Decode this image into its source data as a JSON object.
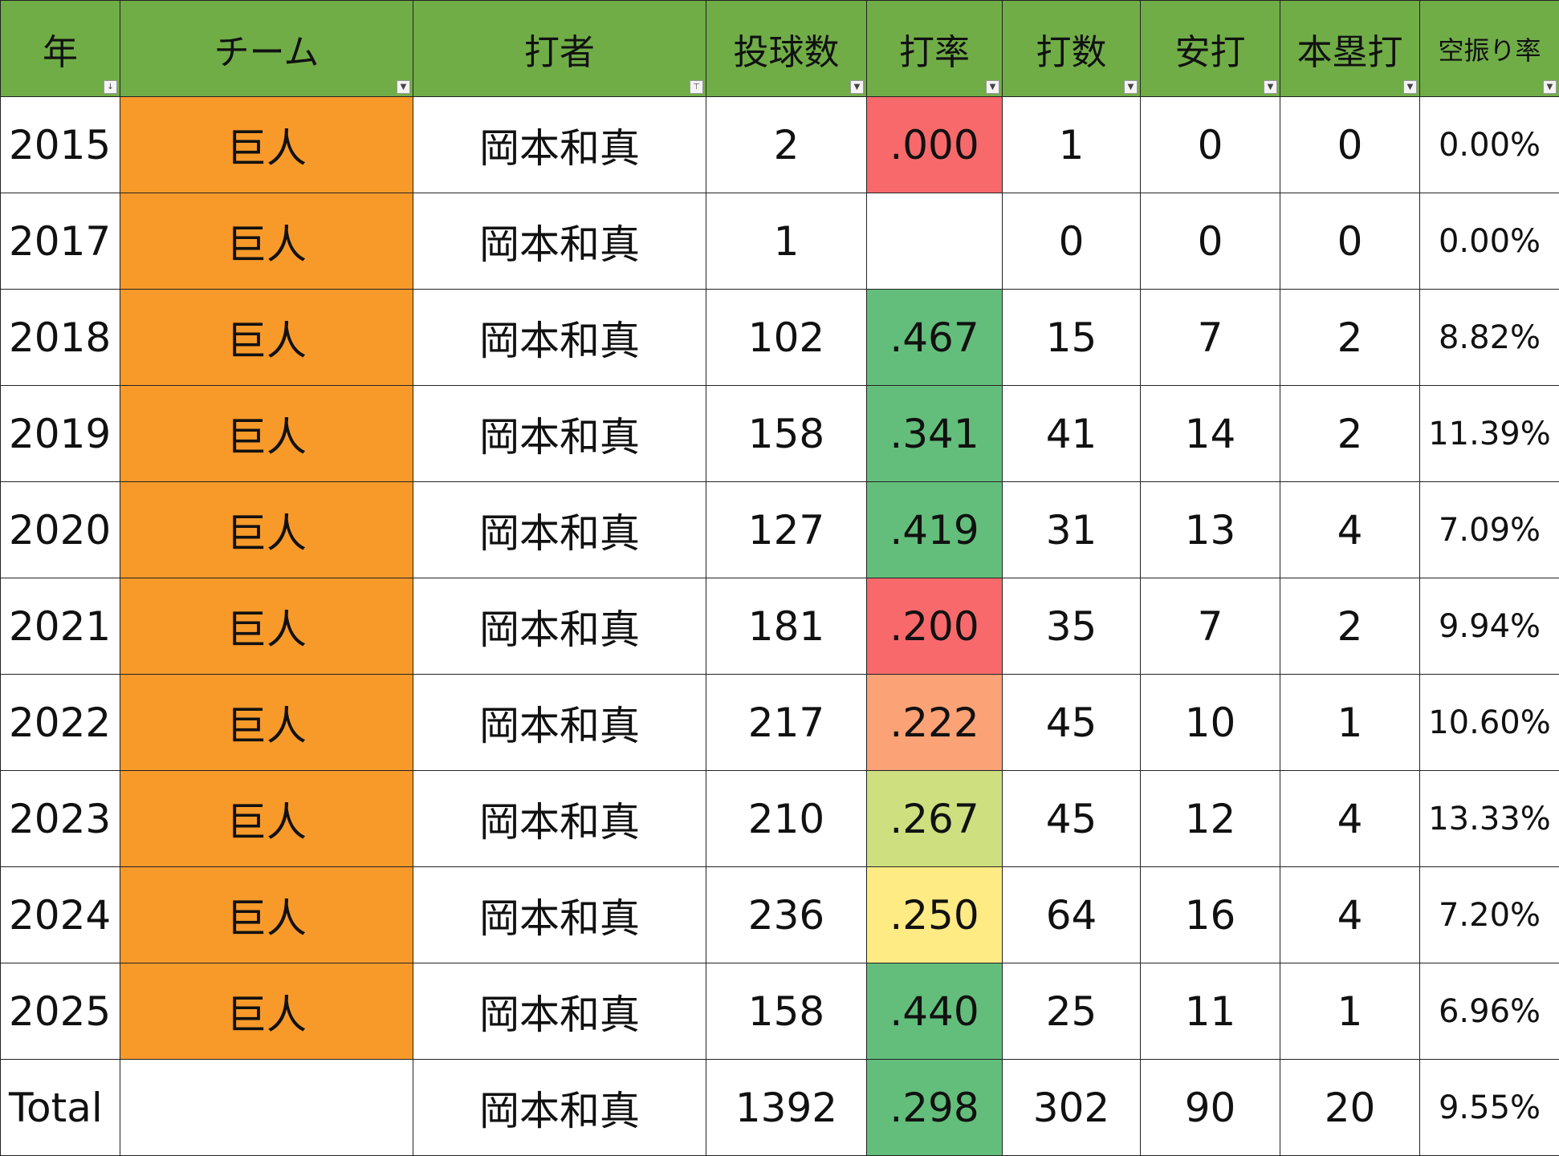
{
  "headers": [
    "年",
    "チーム",
    "打者",
    "投球数",
    "打率",
    "打数",
    "安打",
    "本塁打",
    "空振り率"
  ],
  "header_filter_icons": [
    "sort-filter-icon",
    "dropdown-icon",
    "filter-active-icon",
    "dropdown-icon",
    "dropdown-icon",
    "dropdown-icon",
    "dropdown-icon",
    "dropdown-icon",
    "dropdown-icon"
  ],
  "colors": {
    "header": "#70AD47",
    "team": "#F79A2A",
    "red": "#F8696B",
    "salmon": "#FBA276",
    "lightgreen": "#CDDF7F",
    "yellow": "#FFEB84",
    "green": "#63BE7B"
  },
  "rows": [
    {
      "year": "2015",
      "team": "巨人",
      "batter": "岡本和真",
      "pitches": "2",
      "avg": ".000",
      "avg_color": "#F8696B",
      "ab": "1",
      "hits": "0",
      "hr": "0",
      "whiff": "0.00%"
    },
    {
      "year": "2017",
      "team": "巨人",
      "batter": "岡本和真",
      "pitches": "1",
      "avg": "",
      "avg_color": "#FFFFFF",
      "ab": "0",
      "hits": "0",
      "hr": "0",
      "whiff": "0.00%"
    },
    {
      "year": "2018",
      "team": "巨人",
      "batter": "岡本和真",
      "pitches": "102",
      "avg": ".467",
      "avg_color": "#63BE7B",
      "ab": "15",
      "hits": "7",
      "hr": "2",
      "whiff": "8.82%"
    },
    {
      "year": "2019",
      "team": "巨人",
      "batter": "岡本和真",
      "pitches": "158",
      "avg": ".341",
      "avg_color": "#63BE7B",
      "ab": "41",
      "hits": "14",
      "hr": "2",
      "whiff": "11.39%"
    },
    {
      "year": "2020",
      "team": "巨人",
      "batter": "岡本和真",
      "pitches": "127",
      "avg": ".419",
      "avg_color": "#63BE7B",
      "ab": "31",
      "hits": "13",
      "hr": "4",
      "whiff": "7.09%"
    },
    {
      "year": "2021",
      "team": "巨人",
      "batter": "岡本和真",
      "pitches": "181",
      "avg": ".200",
      "avg_color": "#F8696B",
      "ab": "35",
      "hits": "7",
      "hr": "2",
      "whiff": "9.94%"
    },
    {
      "year": "2022",
      "team": "巨人",
      "batter": "岡本和真",
      "pitches": "217",
      "avg": ".222",
      "avg_color": "#FBA276",
      "ab": "45",
      "hits": "10",
      "hr": "1",
      "whiff": "10.60%"
    },
    {
      "year": "2023",
      "team": "巨人",
      "batter": "岡本和真",
      "pitches": "210",
      "avg": ".267",
      "avg_color": "#CDDF7F",
      "ab": "45",
      "hits": "12",
      "hr": "4",
      "whiff": "13.33%"
    },
    {
      "year": "2024",
      "team": "巨人",
      "batter": "岡本和真",
      "pitches": "236",
      "avg": ".250",
      "avg_color": "#FFEB84",
      "ab": "64",
      "hits": "16",
      "hr": "4",
      "whiff": "7.20%"
    },
    {
      "year": "2025",
      "team": "巨人",
      "batter": "岡本和真",
      "pitches": "158",
      "avg": ".440",
      "avg_color": "#63BE7B",
      "ab": "25",
      "hits": "11",
      "hr": "1",
      "whiff": "6.96%"
    }
  ],
  "total": {
    "year": "Total",
    "team": "",
    "batter": "岡本和真",
    "pitches": "1392",
    "avg": ".298",
    "avg_color": "#63BE7B",
    "ab": "302",
    "hits": "90",
    "hr": "20",
    "whiff": "9.55%"
  }
}
